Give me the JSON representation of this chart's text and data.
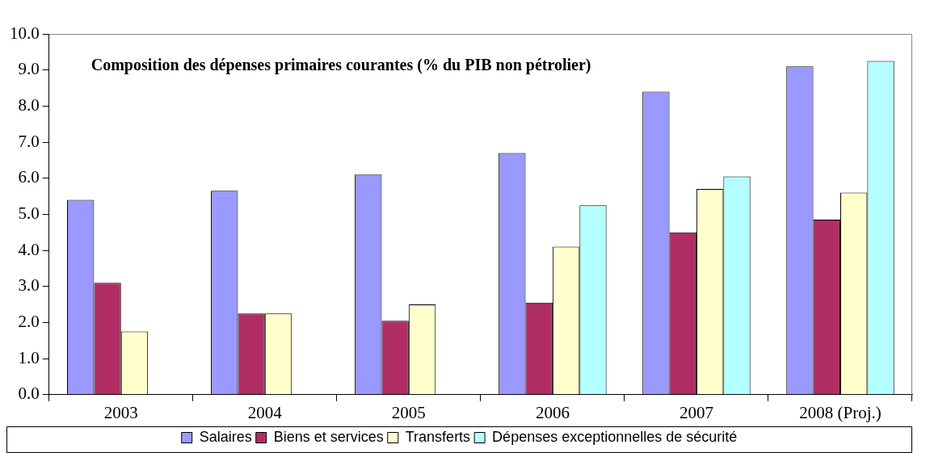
{
  "chart_data": {
    "type": "bar",
    "title": "Composition des dépenses primaires courantes (% du PIB non pétrolier)",
    "categories": [
      "2003",
      "2004",
      "2005",
      "2006",
      "2007",
      "2008 (Proj.)"
    ],
    "series": [
      {
        "name": "Salaires",
        "color": "#9999ff",
        "values": [
          5.4,
          5.65,
          6.1,
          6.7,
          8.4,
          9.1
        ]
      },
      {
        "name": "Biens et services",
        "color": "#b02e63",
        "values": [
          3.1,
          2.25,
          2.05,
          2.55,
          4.5,
          4.85
        ]
      },
      {
        "name": "Transferts",
        "color": "#ffffcc",
        "values": [
          1.75,
          2.25,
          2.5,
          4.1,
          5.7,
          5.6
        ]
      },
      {
        "name": "Dépenses exceptionnelles de sécurité",
        "color": "#b3ffff",
        "values": [
          null,
          null,
          null,
          5.25,
          6.05,
          9.25
        ]
      }
    ],
    "ylim": [
      0,
      10
    ],
    "yticks": [
      {
        "value": 0,
        "label": "0.0"
      },
      {
        "value": 1,
        "label": "1.0"
      },
      {
        "value": 2,
        "label": "2.0"
      },
      {
        "value": 3,
        "label": "3.0"
      },
      {
        "value": 4,
        "label": "4.0"
      },
      {
        "value": 5,
        "label": "5.0"
      },
      {
        "value": 6,
        "label": "6.0"
      },
      {
        "value": 7,
        "label": "7.0"
      },
      {
        "value": 8,
        "label": "8.0"
      },
      {
        "value": 9,
        "label": "9.0"
      },
      {
        "value": 10,
        "label": "10.0"
      }
    ],
    "grid": false,
    "legend": "bottom"
  }
}
